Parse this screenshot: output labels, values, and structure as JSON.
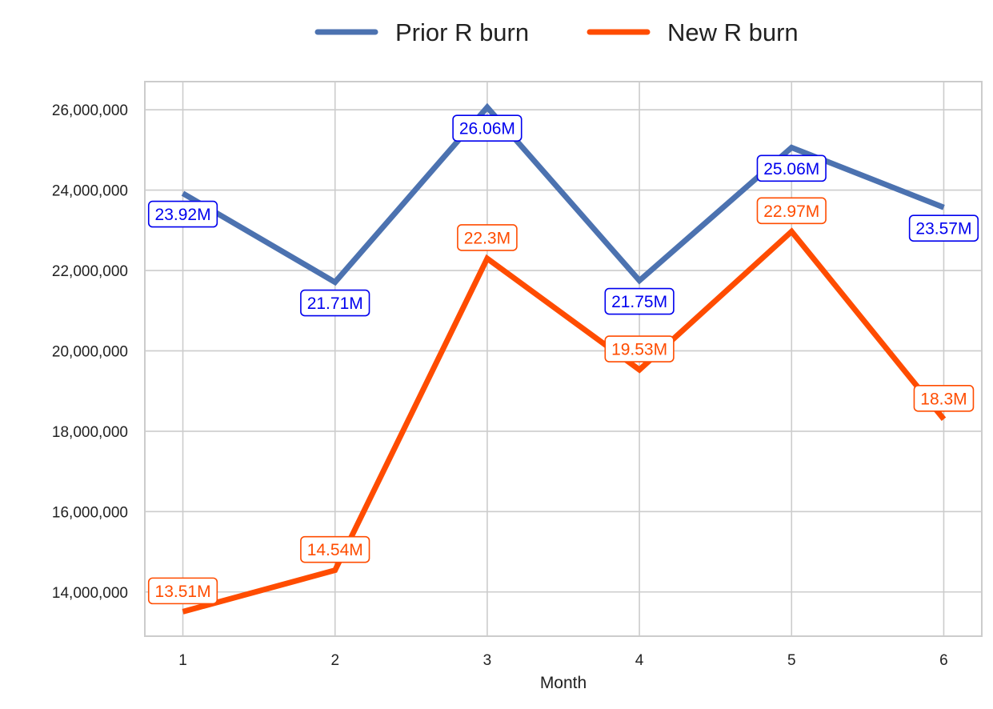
{
  "chart_data": {
    "type": "line",
    "title": "",
    "xlabel": "Month",
    "ylabel": "",
    "x": [
      1,
      2,
      3,
      4,
      5,
      6
    ],
    "x_tick_labels": [
      "1",
      "2",
      "3",
      "4",
      "5",
      "6"
    ],
    "xlim": [
      0.75,
      6.25
    ],
    "ylim": [
      12900000,
      26700000
    ],
    "y_ticks": [
      14000000,
      16000000,
      18000000,
      20000000,
      22000000,
      24000000,
      26000000
    ],
    "y_tick_labels": [
      "14,000,000",
      "16,000,000",
      "18,000,000",
      "20,000,000",
      "22,000,000",
      "24,000,000",
      "26,000,000"
    ],
    "grid": true,
    "legend_position": "top-center, above plot",
    "series": [
      {
        "name": "Prior R burn",
        "color": "#4c72b0",
        "label_color": "#0000ee",
        "label_position": "below",
        "values": [
          23920000,
          21710000,
          26060000,
          21750000,
          25060000,
          23570000
        ],
        "labels": [
          "23.92M",
          "21.71M",
          "26.06M",
          "21.75M",
          "25.06M",
          "23.57M"
        ]
      },
      {
        "name": "New R burn",
        "color": "#ff4c00",
        "label_color": "#ff4c00",
        "label_position": "above",
        "values": [
          13510000,
          14540000,
          22300000,
          19530000,
          22970000,
          18300000
        ],
        "labels": [
          "13.51M",
          "14.54M",
          "22.3M",
          "19.53M",
          "22.97M",
          "18.3M"
        ]
      }
    ]
  }
}
